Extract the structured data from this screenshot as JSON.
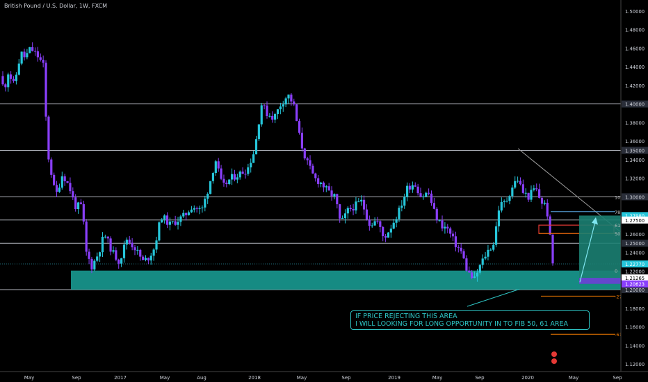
{
  "title": "British Pound / U.S. Dollar, 1W, FXCM",
  "annotation": {
    "line1": "IF PRICE REJECTING THIS AREA",
    "line2": "I WILL LOOKING FOR LONG OPPORTUNITY IN TO FIB 50, 61 AREA"
  },
  "colors": {
    "up": "#26c6da",
    "down": "#8a3ffc",
    "background": "#000000",
    "zone": "#1aa39a",
    "level_line": "#b2b5be",
    "fib_red": "#e53935",
    "fib_orange": "#f57c00"
  },
  "chart_data": {
    "type": "candlestick",
    "symbol": "British Pound / U.S. Dollar",
    "interval": "1W",
    "source": "FXCM",
    "x_ticks": [
      "May",
      "Sep",
      "2017",
      "May",
      "Aug",
      "2018",
      "May",
      "Sep",
      "2019",
      "May",
      "Sep",
      "2020",
      "May",
      "Sep"
    ],
    "y_ticks": [
      "1.50000",
      "1.48000",
      "1.46000",
      "1.44000",
      "1.42000",
      "1.40000",
      "1.38000",
      "1.36000",
      "1.35000",
      "1.34000",
      "1.32000",
      "1.30000",
      "1.27500",
      "1.26000",
      "1.25000",
      "1.24000",
      "1.22000",
      "1.20000",
      "1.18000",
      "1.16000",
      "1.14000",
      "1.12000"
    ],
    "ylim": [
      1.11,
      1.51
    ],
    "horizontal_levels": [
      1.4,
      1.35,
      1.3,
      1.275,
      1.25,
      1.2
    ],
    "price_labels": [
      {
        "label": "1.27980",
        "value": 1.2798,
        "color": "#26c6da"
      },
      {
        "label": "1.27500",
        "value": 1.275,
        "color": "#ffffff"
      },
      {
        "label": "1.22770",
        "value": 1.2277,
        "color": "#26c6da"
      },
      {
        "label": "1.21265",
        "value": 1.21265,
        "color": "#ffffff"
      },
      {
        "label": "1.20623",
        "value": 1.20623,
        "color": "#8a3ffc"
      }
    ],
    "fib_labels": [
      {
        "label": "100",
        "value": 1.3
      },
      {
        "label": "78",
        "value": 1.284
      },
      {
        "label": "61",
        "value": 1.2695
      },
      {
        "label": "50",
        "value": 1.2605
      },
      {
        "label": "0",
        "value": 1.2205
      },
      {
        "label": "-27",
        "value": 1.193
      },
      {
        "label": "-61",
        "value": 1.152
      }
    ],
    "demand_zone": [
      1.2,
      1.2205
    ],
    "candle_count": 205
  }
}
